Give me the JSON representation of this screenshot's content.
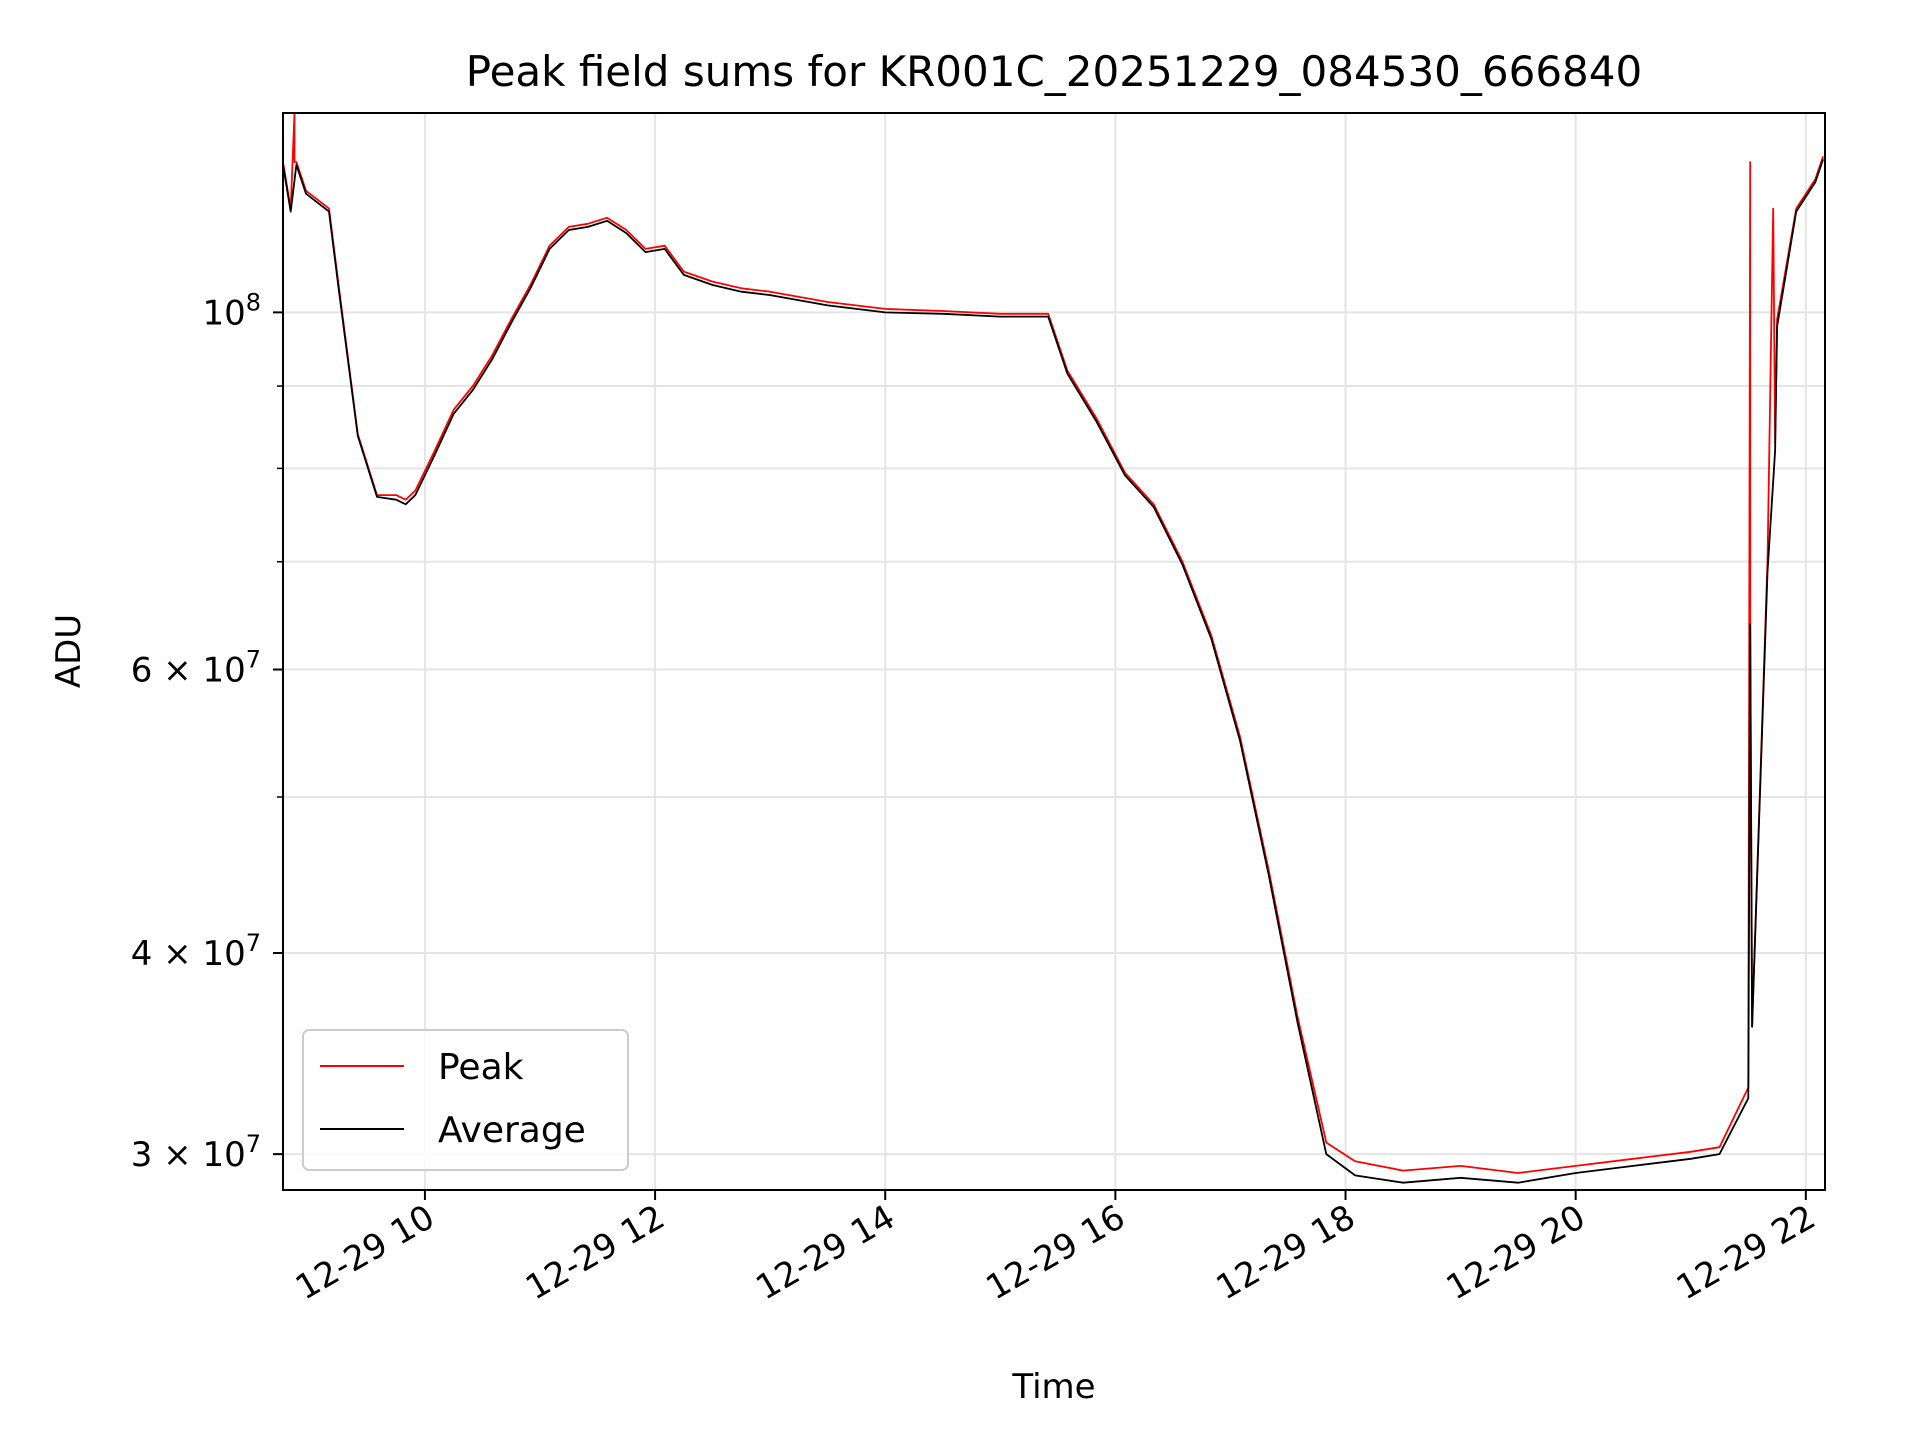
{
  "chart_data": {
    "type": "line",
    "title": "Peak field sums for KR001C_20251229_084530_666840",
    "xlabel": "Time",
    "ylabel": "ADU",
    "yscale": "log",
    "xlim": [
      "2025-12-29T08:46",
      "2025-12-29T22:10"
    ],
    "ylim": [
      28500000,
      133000000
    ],
    "grid": true,
    "legend_position": "lower-left",
    "x_ticks": [
      {
        "value": "2025-12-29T10:00",
        "label": "12-29 10"
      },
      {
        "value": "2025-12-29T12:00",
        "label": "12-29 12"
      },
      {
        "value": "2025-12-29T14:00",
        "label": "12-29 14"
      },
      {
        "value": "2025-12-29T16:00",
        "label": "12-29 16"
      },
      {
        "value": "2025-12-29T18:00",
        "label": "12-29 18"
      },
      {
        "value": "2025-12-29T20:00",
        "label": "12-29 20"
      },
      {
        "value": "2025-12-29T22:00",
        "label": "12-29 22"
      }
    ],
    "y_ticks": [
      {
        "value": 30000000,
        "mantissa": "3",
        "exp": "7"
      },
      {
        "value": 40000000,
        "mantissa": "4",
        "exp": "7"
      },
      {
        "value": 60000000,
        "mantissa": "6",
        "exp": "7"
      },
      {
        "value": 100000000,
        "mantissa": "",
        "exp": "8"
      }
    ],
    "y_minor_ticks": [
      50000000,
      70000000,
      80000000,
      90000000
    ],
    "series": [
      {
        "name": "Peak",
        "color": "#ff0000",
        "x": [
          "2025-12-29T08:46",
          "2025-12-29T08:50",
          "2025-12-29T08:52",
          "2025-12-29T08:52",
          "2025-12-29T08:53",
          "2025-12-29T08:58",
          "2025-12-29T09:10",
          "2025-12-29T09:15",
          "2025-12-29T09:25",
          "2025-12-29T09:35",
          "2025-12-29T09:45",
          "2025-12-29T09:50",
          "2025-12-29T09:55",
          "2025-12-29T10:05",
          "2025-12-29T10:15",
          "2025-12-29T10:25",
          "2025-12-29T10:35",
          "2025-12-29T10:45",
          "2025-12-29T10:55",
          "2025-12-29T11:05",
          "2025-12-29T11:15",
          "2025-12-29T11:25",
          "2025-12-29T11:35",
          "2025-12-29T11:45",
          "2025-12-29T11:55",
          "2025-12-29T12:05",
          "2025-12-29T12:15",
          "2025-12-29T12:30",
          "2025-12-29T12:45",
          "2025-12-29T13:00",
          "2025-12-29T13:30",
          "2025-12-29T14:00",
          "2025-12-29T14:30",
          "2025-12-29T15:00",
          "2025-12-29T15:25",
          "2025-12-29T15:35",
          "2025-12-29T15:50",
          "2025-12-29T16:05",
          "2025-12-29T16:20",
          "2025-12-29T16:35",
          "2025-12-29T16:50",
          "2025-12-29T17:05",
          "2025-12-29T17:20",
          "2025-12-29T17:35",
          "2025-12-29T17:50",
          "2025-12-29T18:05",
          "2025-12-29T18:30",
          "2025-12-29T19:00",
          "2025-12-29T19:30",
          "2025-12-29T20:00",
          "2025-12-29T20:30",
          "2025-12-29T21:00",
          "2025-12-29T21:15",
          "2025-12-29T21:30",
          "2025-12-29T21:31",
          "2025-12-29T21:31",
          "2025-12-29T21:32",
          "2025-12-29T21:40",
          "2025-12-29T21:43",
          "2025-12-29T21:44",
          "2025-12-29T21:45",
          "2025-12-29T21:55",
          "2025-12-29T22:05",
          "2025-12-29T22:09"
        ],
        "values": [
          124000000,
          116000000,
          133000000,
          124000000,
          124000000,
          119000000,
          116000000,
          104000000,
          84000000,
          77000000,
          77000000,
          76500000,
          77500000,
          82000000,
          87000000,
          90000000,
          94000000,
          99000000,
          104000000,
          110000000,
          113000000,
          113500000,
          114500000,
          112500000,
          109500000,
          110000000,
          106000000,
          104500000,
          103500000,
          103000000,
          101500000,
          100500000,
          100200000,
          99800000,
          99800000,
          92000000,
          86000000,
          79500000,
          76000000,
          70000000,
          63000000,
          54500000,
          45000000,
          36500000,
          30500000,
          29700000,
          29300000,
          29500000,
          29200000,
          29500000,
          29800000,
          30100000,
          30300000,
          33000000,
          124000000,
          65000000,
          36000000,
          70000000,
          116000000,
          83000000,
          99000000,
          116000000,
          121000000,
          125000000
        ]
      },
      {
        "name": "Average",
        "color": "#000000",
        "x": [
          "2025-12-29T08:46",
          "2025-12-29T08:50",
          "2025-12-29T08:53",
          "2025-12-29T08:58",
          "2025-12-29T09:10",
          "2025-12-29T09:15",
          "2025-12-29T09:25",
          "2025-12-29T09:35",
          "2025-12-29T09:45",
          "2025-12-29T09:50",
          "2025-12-29T09:55",
          "2025-12-29T10:05",
          "2025-12-29T10:15",
          "2025-12-29T10:25",
          "2025-12-29T10:35",
          "2025-12-29T10:45",
          "2025-12-29T10:55",
          "2025-12-29T11:05",
          "2025-12-29T11:15",
          "2025-12-29T11:25",
          "2025-12-29T11:35",
          "2025-12-29T11:45",
          "2025-12-29T11:55",
          "2025-12-29T12:05",
          "2025-12-29T12:15",
          "2025-12-29T12:30",
          "2025-12-29T12:45",
          "2025-12-29T13:00",
          "2025-12-29T13:30",
          "2025-12-29T14:00",
          "2025-12-29T14:30",
          "2025-12-29T15:00",
          "2025-12-29T15:25",
          "2025-12-29T15:35",
          "2025-12-29T15:50",
          "2025-12-29T16:05",
          "2025-12-29T16:20",
          "2025-12-29T16:35",
          "2025-12-29T16:50",
          "2025-12-29T17:05",
          "2025-12-29T17:20",
          "2025-12-29T17:35",
          "2025-12-29T17:50",
          "2025-12-29T18:05",
          "2025-12-29T18:30",
          "2025-12-29T19:00",
          "2025-12-29T19:30",
          "2025-12-29T20:00",
          "2025-12-29T20:30",
          "2025-12-29T21:00",
          "2025-12-29T21:15",
          "2025-12-29T21:30",
          "2025-12-29T21:31",
          "2025-12-29T21:32",
          "2025-12-29T21:40",
          "2025-12-29T21:44",
          "2025-12-29T21:45",
          "2025-12-29T21:55",
          "2025-12-29T22:05",
          "2025-12-29T22:09"
        ],
        "values": [
          123500000,
          115500000,
          123500000,
          118500000,
          115500000,
          103500000,
          83800000,
          76800000,
          76500000,
          76000000,
          77000000,
          81500000,
          86500000,
          89500000,
          93500000,
          98500000,
          103500000,
          109500000,
          112500000,
          113000000,
          114000000,
          112000000,
          109000000,
          109500000,
          105500000,
          104000000,
          103000000,
          102500000,
          101000000,
          100000000,
          99800000,
          99400000,
          99400000,
          91600000,
          85600000,
          79200000,
          75700000,
          69700000,
          62700000,
          54200000,
          44700000,
          36200000,
          30000000,
          29100000,
          28800000,
          29000000,
          28800000,
          29200000,
          29500000,
          29800000,
          30000000,
          32500000,
          64000000,
          36000000,
          69000000,
          82000000,
          98000000,
          115500000,
          120500000,
          124500000
        ]
      }
    ]
  }
}
